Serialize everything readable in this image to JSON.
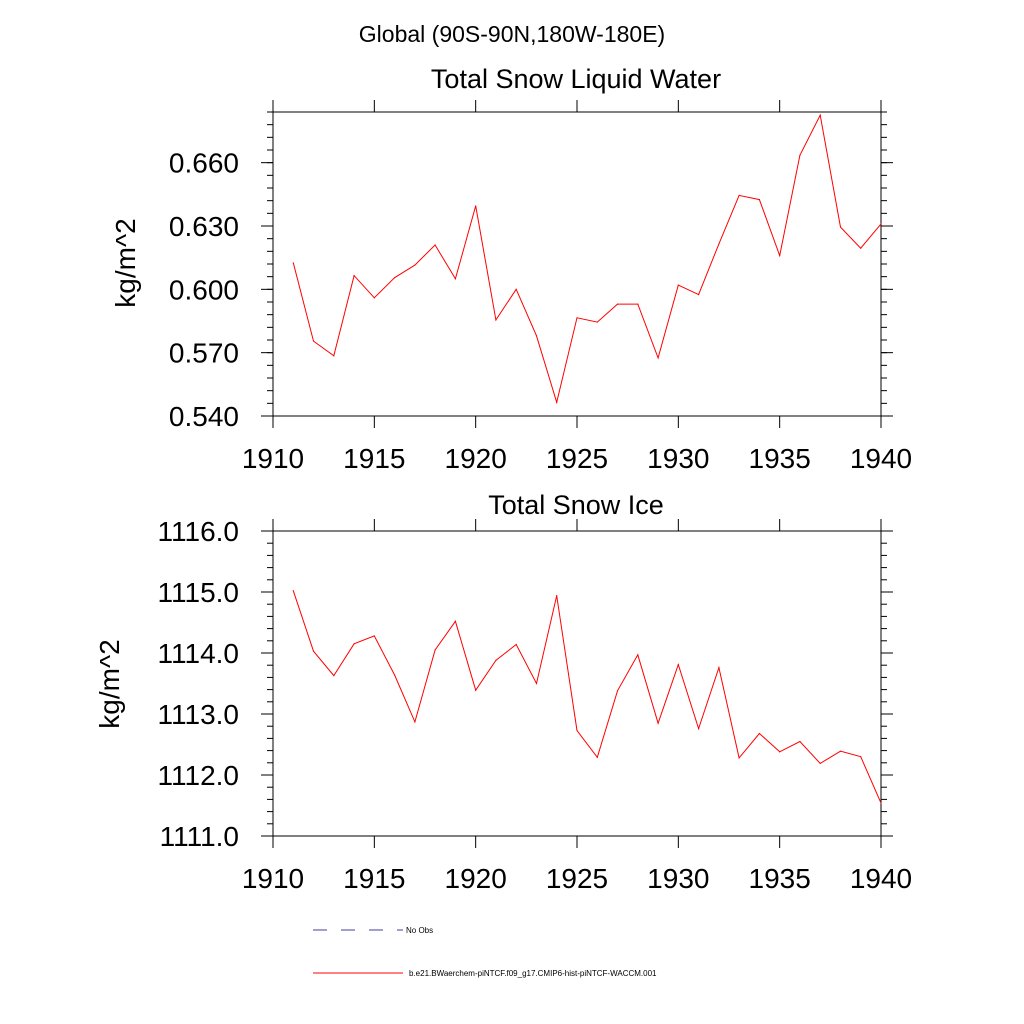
{
  "figure": {
    "title": "Global (90S-90N,180W-180E)"
  },
  "chart_data": [
    {
      "type": "line",
      "title": "Total Snow Liquid Water",
      "xlabel": "",
      "ylabel": "kg/m^2",
      "xlim": [
        1910,
        1940
      ],
      "ylim": [
        0.54,
        0.684
      ],
      "xticks": [
        1910,
        1915,
        1920,
        1925,
        1930,
        1935,
        1940
      ],
      "xtick_labels": [
        "1910",
        "1915",
        "1920",
        "1925",
        "1930",
        "1935",
        "1940"
      ],
      "yticks": [
        0.54,
        0.57,
        0.6,
        0.63,
        0.66
      ],
      "ytick_labels": [
        "0.540",
        "0.570",
        "0.600",
        "0.630",
        "0.660"
      ],
      "grid": false,
      "series": [
        {
          "name": "b.e21.BWaerchem-piNTCF.f09_g17.CMIP6-hist-piNTCF-WACCM.001",
          "color": "#ff0000",
          "x": [
            1911,
            1912,
            1913,
            1914,
            1915,
            1916,
            1917,
            1918,
            1919,
            1920,
            1921,
            1922,
            1923,
            1924,
            1925,
            1926,
            1927,
            1928,
            1929,
            1930,
            1931,
            1932,
            1933,
            1934,
            1935,
            1936,
            1937,
            1938,
            1939,
            1940
          ],
          "values": [
            0.6125,
            0.5755,
            0.5685,
            0.6065,
            0.596,
            0.6055,
            0.6115,
            0.621,
            0.605,
            0.6395,
            0.5855,
            0.6,
            0.578,
            0.5465,
            0.5865,
            0.5845,
            0.593,
            0.593,
            0.5675,
            0.602,
            0.5975,
            0.6215,
            0.6445,
            0.6425,
            0.616,
            0.6635,
            0.6825,
            0.6295,
            0.6195,
            0.631
          ]
        }
      ]
    },
    {
      "type": "line",
      "title": "Total Snow Ice",
      "xlabel": "",
      "ylabel": "kg/m^2",
      "xlim": [
        1910,
        1940
      ],
      "ylim": [
        1111.0,
        1116.0
      ],
      "xticks": [
        1910,
        1915,
        1920,
        1925,
        1930,
        1935,
        1940
      ],
      "xtick_labels": [
        "1910",
        "1915",
        "1920",
        "1925",
        "1930",
        "1935",
        "1940"
      ],
      "yticks": [
        1111.0,
        1112.0,
        1113.0,
        1114.0,
        1115.0,
        1116.0
      ],
      "ytick_labels": [
        "1111.0",
        "1112.0",
        "1113.0",
        "1114.0",
        "1115.0",
        "1116.0"
      ],
      "grid": false,
      "series": [
        {
          "name": "b.e21.BWaerchem-piNTCF.f09_g17.CMIP6-hist-piNTCF-WACCM.001",
          "color": "#ff0000",
          "x": [
            1911,
            1912,
            1913,
            1914,
            1915,
            1916,
            1917,
            1918,
            1919,
            1920,
            1921,
            1922,
            1923,
            1924,
            1925,
            1926,
            1927,
            1928,
            1929,
            1930,
            1931,
            1932,
            1933,
            1934,
            1935,
            1936,
            1937,
            1938,
            1939,
            1940
          ],
          "values": [
            1115.02,
            1114.03,
            1113.63,
            1114.15,
            1114.28,
            1113.64,
            1112.87,
            1114.05,
            1114.52,
            1113.39,
            1113.88,
            1114.14,
            1113.5,
            1114.94,
            1112.73,
            1112.29,
            1113.38,
            1113.97,
            1112.85,
            1113.81,
            1112.76,
            1113.76,
            1112.28,
            1112.68,
            1112.38,
            1112.55,
            1112.19,
            1112.39,
            1112.3,
            1111.54
          ]
        }
      ]
    }
  ],
  "legend": {
    "placement": "bottom",
    "items": [
      {
        "label": "No Obs",
        "color": "#4040a0",
        "style": "dashed"
      },
      {
        "label": "b.e21.BWaerchem-piNTCF.f09_g17.CMIP6-hist-piNTCF-WACCM.001",
        "color": "#ff0000",
        "style": "solid"
      }
    ]
  }
}
